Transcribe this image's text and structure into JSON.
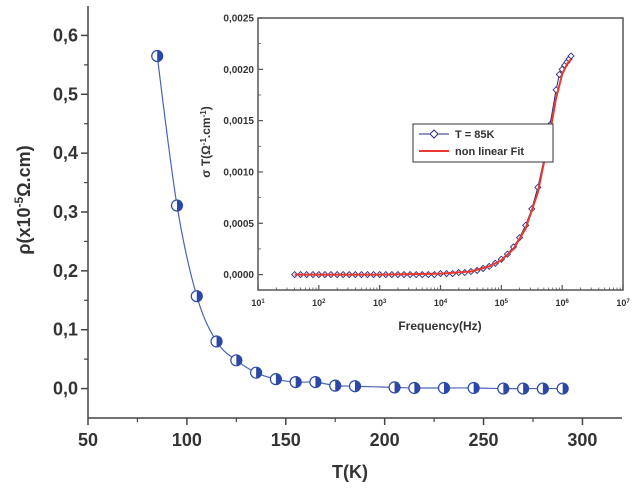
{
  "chart_data": [
    {
      "type": "scatter",
      "xlabel": "T(K)",
      "ylabel_parts": [
        "ρ(x10",
        "-5",
        "Ω.cm)"
      ],
      "xlim": [
        50,
        320
      ],
      "ylim": [
        -0.05,
        0.65
      ],
      "xticks": [
        50,
        100,
        150,
        200,
        250,
        300
      ],
      "xtick_labels": [
        "50",
        "100",
        "150",
        "200",
        "250",
        "300"
      ],
      "yticks": [
        0.0,
        0.1,
        0.2,
        0.3,
        0.4,
        0.5,
        0.6
      ],
      "ytick_labels": [
        "0,0",
        "0,1",
        "0,2",
        "0,3",
        "0,4",
        "0,5",
        "0,6"
      ],
      "marker_color": "#2b48a6",
      "line_color": "#4a64b8",
      "series": [
        {
          "x": [
            85,
            95,
            105,
            115,
            125,
            135,
            145,
            155,
            165,
            175,
            185,
            205,
            215,
            230,
            245,
            260,
            270,
            280,
            290
          ],
          "y": [
            0.565,
            0.311,
            0.157,
            0.08,
            0.048,
            0.027,
            0.016,
            0.011,
            0.011,
            0.005,
            0.004,
            0.002,
            0.001,
            0.001,
            0.001,
            0.0,
            0.0,
            0.0,
            0.0
          ]
        }
      ]
    },
    {
      "type": "line",
      "xlabel": "Frequency(Hz)",
      "ylabel_parts": [
        "σ T(Ω",
        "-1",
        ".cm",
        "-1",
        ")"
      ],
      "x_scale": "log",
      "xlim": [
        10,
        10000000
      ],
      "ylim": [
        -0.00015,
        0.0025
      ],
      "xticks": [
        10,
        100,
        1000,
        10000,
        100000,
        1000000,
        10000000
      ],
      "xtick_labels": [
        {
          "base": "10",
          "exp": "1"
        },
        {
          "base": "10",
          "exp": "2"
        },
        {
          "base": "10",
          "exp": "3"
        },
        {
          "base": "10",
          "exp": "4"
        },
        {
          "base": "10",
          "exp": "5"
        },
        {
          "base": "10",
          "exp": "6"
        },
        {
          "base": "10",
          "exp": "7"
        }
      ],
      "yticks": [
        0.0,
        0.0005,
        0.001,
        0.0015,
        0.002,
        0.0025
      ],
      "ytick_labels": [
        "0,0000",
        "0,0005",
        "0,0010",
        "0,0015",
        "0,0020",
        "0,0025"
      ],
      "legend_position": "top-center",
      "series": [
        {
          "name": "T = 85K",
          "marker": "diamond",
          "color": "#2a2a8a",
          "x": [
            40,
            50,
            63,
            80,
            100,
            126,
            158,
            200,
            251,
            316,
            398,
            501,
            631,
            794,
            1000,
            1259,
            1585,
            1995,
            2512,
            3162,
            3981,
            5012,
            6310,
            7943,
            10000,
            12589,
            15849,
            19953,
            25119,
            31623,
            39811,
            50119,
            63096,
            79433,
            100000,
            125893,
            158489,
            199526,
            251189,
            316228,
            398107,
            501187,
            630957,
            794328,
            900000,
            1000000,
            1100000,
            1200000,
            1300000,
            1400000
          ],
          "y": [
            0.0,
            0.0,
            0.0,
            0.0,
            0.0,
            0.0,
            0.0,
            0.0,
            0.0,
            0.0,
            0.0,
            0.0,
            0.0,
            0.0,
            0.0,
            0.0,
            0.0,
            0.0,
            0.0,
            0.0,
            0.0,
            0.0,
            0.0,
            0.0,
            1e-05,
            1e-05,
            1e-05,
            2e-05,
            2e-05,
            3e-05,
            4e-05,
            6e-05,
            8e-05,
            0.00011,
            0.00015,
            0.0002,
            0.00027,
            0.00036,
            0.00048,
            0.00064,
            0.00085,
            0.00112,
            0.00146,
            0.0018,
            0.00195,
            0.002,
            0.00204,
            0.00207,
            0.0021,
            0.00213
          ]
        },
        {
          "name": "non linear Fit",
          "marker": "none",
          "color": "#e83a2e",
          "x": [
            40,
            100,
            1000,
            10000,
            31623,
            63096,
            100000,
            158489,
            251189,
            398107,
            630957,
            794328,
            1000000,
            1200000,
            1400000
          ],
          "y": [
            0.0,
            0.0,
            0.0,
            1e-05,
            3e-05,
            8e-05,
            0.00014,
            0.00025,
            0.00045,
            0.0008,
            0.00138,
            0.00172,
            0.00195,
            0.00205,
            0.0021
          ]
        }
      ]
    }
  ]
}
